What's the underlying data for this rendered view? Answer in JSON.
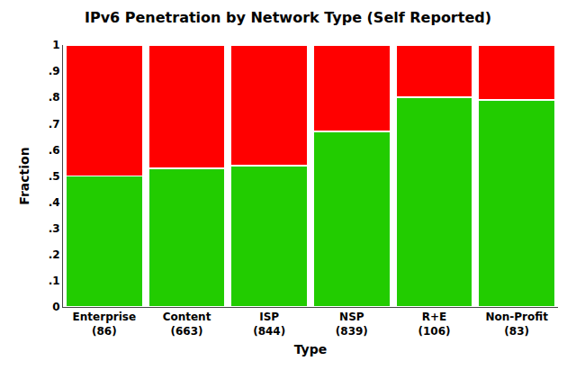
{
  "chart_data": {
    "type": "bar",
    "title": "IPv6 Penetration by Network Type (Self Reported)",
    "xlabel": "Type",
    "ylabel": "Fraction",
    "categories": [
      "Enterprise\n(86)",
      "Content\n(663)",
      "ISP\n(844)",
      "NSP\n(839)",
      "R+E\n(106)",
      "Non-Profit\n(83)"
    ],
    "series": [
      {
        "color": "#22CC00",
        "values": [
          0.5,
          0.53,
          0.54,
          0.67,
          0.8,
          0.79
        ]
      },
      {
        "color": "#ff0000",
        "values": [
          0.5,
          0.47,
          0.46,
          0.33,
          0.2,
          0.21
        ]
      }
    ],
    "stacked": true,
    "ylim": [
      0,
      1
    ],
    "yticks": [
      0,
      {
        "value": 0.1,
        "label": ".1"
      },
      {
        "value": 0.2,
        "label": ".2"
      },
      {
        "value": 0.3,
        "label": ".3"
      },
      {
        "value": 0.4,
        "label": ".4"
      },
      {
        "value": 0.5,
        "label": ".5"
      },
      {
        "value": 0.6,
        "label": ".6"
      },
      {
        "value": 0.7,
        "label": ".7"
      },
      {
        "value": 0.8,
        "label": ".8"
      },
      {
        "value": 0.9,
        "label": ".9"
      },
      1
    ],
    "grid": false
  }
}
